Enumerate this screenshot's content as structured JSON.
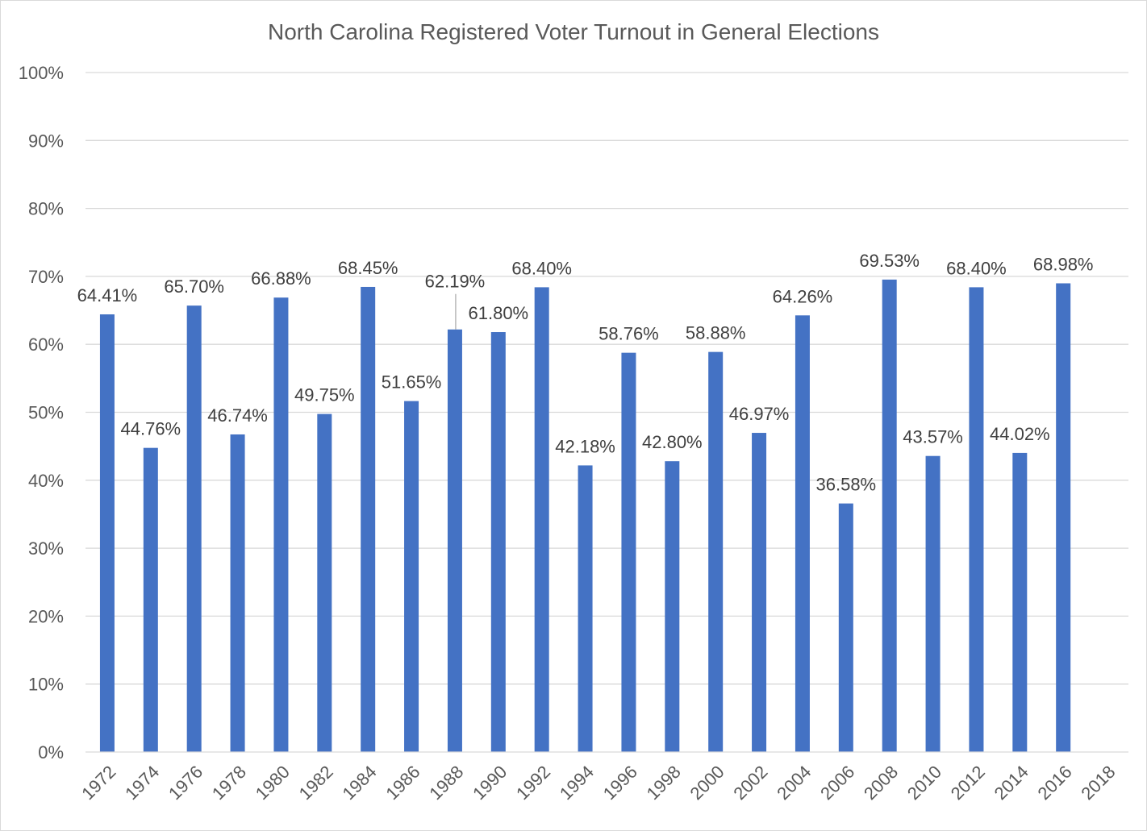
{
  "chart_data": {
    "type": "bar",
    "title": "North Carolina Registered Voter Turnout in General Elections",
    "xlabel": "",
    "ylabel": "",
    "ylim": [
      0,
      100
    ],
    "y_ticks": [
      "0%",
      "10%",
      "20%",
      "30%",
      "40%",
      "50%",
      "60%",
      "70%",
      "80%",
      "90%",
      "100%"
    ],
    "grid": true,
    "legend": "none",
    "colors": {
      "bar": "#4472c4",
      "grid": "#d9d9d9",
      "text": "#595959",
      "label": "#404040"
    },
    "categories": [
      "1972",
      "1974",
      "1976",
      "1978",
      "1980",
      "1982",
      "1984",
      "1986",
      "1988",
      "1990",
      "1992",
      "1994",
      "1996",
      "1998",
      "2000",
      "2002",
      "2004",
      "2006",
      "2008",
      "2010",
      "2012",
      "2014",
      "2016",
      "2018"
    ],
    "values": [
      64.41,
      44.76,
      65.7,
      46.74,
      66.88,
      49.75,
      68.45,
      51.65,
      62.19,
      61.8,
      68.4,
      42.18,
      58.76,
      42.8,
      58.88,
      46.97,
      64.26,
      36.58,
      69.53,
      43.57,
      68.4,
      44.02,
      68.98,
      null
    ],
    "data_labels": [
      "64.41%",
      "44.76%",
      "65.70%",
      "46.74%",
      "66.88%",
      "49.75%",
      "68.45%",
      "51.65%",
      "62.19%",
      "61.80%",
      "68.40%",
      "42.18%",
      "58.76%",
      "42.80%",
      "58.88%",
      "46.97%",
      "64.26%",
      "36.58%",
      "69.53%",
      "43.57%",
      "68.40%",
      "44.02%",
      "68.98%",
      ""
    ]
  }
}
